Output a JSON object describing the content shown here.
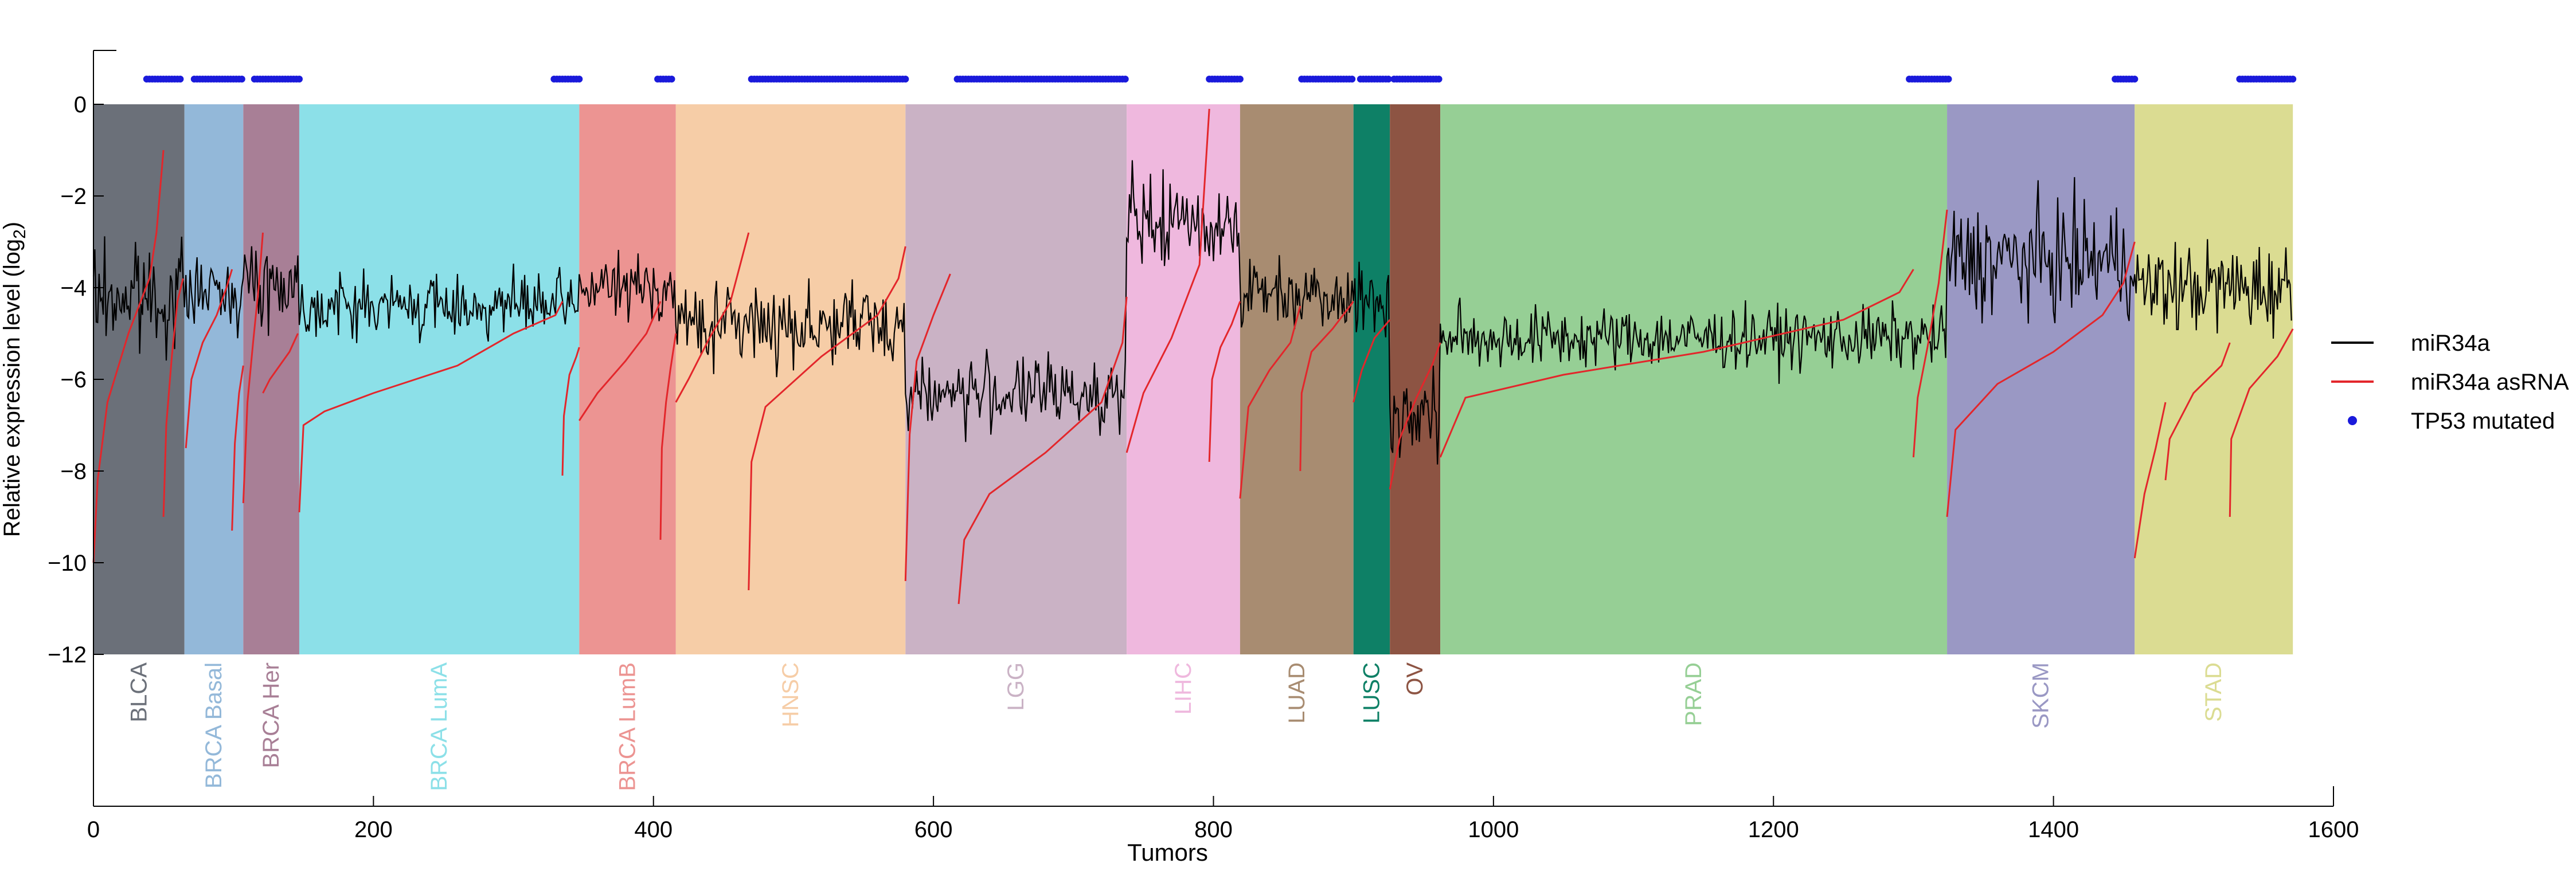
{
  "chart_data": {
    "type": "line",
    "xlabel": "Tumors",
    "ylabel": "Relative expression level (log",
    "ylabel_subscript": "2",
    "ylabel_suffix": ")",
    "xlim": [
      0,
      1600
    ],
    "ylim": [
      -12,
      1
    ],
    "xticks": [
      0,
      200,
      400,
      600,
      800,
      1000,
      1200,
      1400,
      1600
    ],
    "yticks": [
      0,
      -2,
      -4,
      -6,
      -8,
      -10,
      -12
    ],
    "grid": false,
    "legend": {
      "placement": "right",
      "entries": [
        {
          "label": "miR34a",
          "color": "#000000",
          "marker": "line"
        },
        {
          "label": "miR34a asRNA",
          "color": "#e3262b",
          "marker": "line"
        },
        {
          "label": "TP53 mutated",
          "color": "#1a1adb",
          "marker": "dot"
        }
      ]
    },
    "groups": [
      {
        "name": "BLCA",
        "start": 0,
        "end": 65,
        "color": "#6b7079"
      },
      {
        "name": "BRCA Basal",
        "start": 65,
        "end": 107,
        "color": "#93b8d9"
      },
      {
        "name": "BRCA Her",
        "start": 107,
        "end": 147,
        "color": "#a87f96"
      },
      {
        "name": "BRCA LumA",
        "start": 147,
        "end": 347,
        "color": "#8ce0e8"
      },
      {
        "name": "BRCA LumB",
        "start": 347,
        "end": 416,
        "color": "#ec9492"
      },
      {
        "name": "HNSC",
        "start": 416,
        "end": 580,
        "color": "#f6cda7"
      },
      {
        "name": "LGG",
        "start": 580,
        "end": 738,
        "color": "#cab2c5"
      },
      {
        "name": "LIHC",
        "start": 738,
        "end": 819,
        "color": "#efb8de"
      },
      {
        "name": "LUAD",
        "start": 819,
        "end": 900,
        "color": "#a88c71"
      },
      {
        "name": "LUSC",
        "start": 900,
        "end": 926,
        "color": "#0e8066"
      },
      {
        "name": "OV",
        "start": 926,
        "end": 962,
        "color": "#8d5443"
      },
      {
        "name": "PRAD",
        "start": 962,
        "end": 1324,
        "color": "#96cf95"
      },
      {
        "name": "SKCM",
        "start": 1324,
        "end": 1458,
        "color": "#9a98c4"
      },
      {
        "name": "STAD",
        "start": 1458,
        "end": 1571,
        "color": "#dbdc92"
      }
    ],
    "series": [
      {
        "name": "miR34a",
        "color": "#000000",
        "group_levels": [
          {
            "group": "BLCA",
            "mean": -4.2,
            "spread": 1.1
          },
          {
            "group": "BRCA Basal",
            "mean": -4.1,
            "spread": 0.6
          },
          {
            "group": "BRCA Her",
            "mean": -3.9,
            "spread": 0.8
          },
          {
            "group": "BRCA LumA",
            "mean": -4.4,
            "spread": 0.6
          },
          {
            "group": "BRCA LumB",
            "mean": -4.0,
            "spread": 0.6
          },
          {
            "group": "HNSC",
            "mean": -4.8,
            "spread": 0.8
          },
          {
            "group": "LGG",
            "mean": -6.3,
            "spread": 0.7
          },
          {
            "group": "LIHC",
            "mean": -2.6,
            "spread": 0.9
          },
          {
            "group": "LUAD",
            "mean": -4.1,
            "spread": 0.7
          },
          {
            "group": "LUSC",
            "mean": -4.3,
            "spread": 0.7
          },
          {
            "group": "OV",
            "mean": -6.8,
            "spread": 0.9
          },
          {
            "group": "PRAD",
            "mean": -5.1,
            "spread": 0.6
          },
          {
            "group": "SKCM",
            "mean": -3.4,
            "spread": 1.1
          },
          {
            "group": "STAD",
            "mean": -4.0,
            "spread": 0.9
          }
        ]
      },
      {
        "name": "miR34a asRNA",
        "color": "#e3262b",
        "segments": [
          {
            "x": [
              0,
              3,
              10,
              25,
              40,
              45,
              50
            ],
            "y": [
              -10,
              -8.2,
              -6.5,
              -5.0,
              -3.8,
              -2.8,
              -1.0
            ]
          },
          {
            "x": [
              50,
              52,
              56,
              60,
              64
            ],
            "y": [
              -9.0,
              -7.0,
              -5.5,
              -4.3,
              -3.8
            ]
          },
          {
            "x": [
              66,
              70,
              78,
              88,
              95,
              99
            ],
            "y": [
              -7.5,
              -6.0,
              -5.2,
              -4.6,
              -4.0,
              -3.6
            ]
          },
          {
            "x": [
              99,
              101,
              104,
              107
            ],
            "y": [
              -9.3,
              -7.4,
              -6.3,
              -5.7
            ]
          },
          {
            "x": [
              107,
              110,
              114,
              118,
              121
            ],
            "y": [
              -8.7,
              -6.5,
              -5.2,
              -4.0,
              -2.8
            ]
          },
          {
            "x": [
              121,
              126,
              133,
              140,
              146
            ],
            "y": [
              -6.3,
              -6.0,
              -5.7,
              -5.4,
              -5.0
            ]
          },
          {
            "x": [
              147,
              150,
              165,
              200,
              260,
              300,
              330,
              335
            ],
            "y": [
              -8.9,
              -7.0,
              -6.7,
              -6.3,
              -5.7,
              -5.0,
              -4.6,
              -4.3
            ]
          },
          {
            "x": [
              335,
              336,
              340,
              345,
              347
            ],
            "y": [
              -8.1,
              -6.8,
              -5.9,
              -5.5,
              -5.3
            ]
          },
          {
            "x": [
              347,
              360,
              380,
              395,
              405
            ],
            "y": [
              -6.9,
              -6.3,
              -5.6,
              -5.0,
              -4.3
            ]
          },
          {
            "x": [
              405,
              406,
              409,
              412,
              416
            ],
            "y": [
              -9.5,
              -7.5,
              -6.5,
              -5.8,
              -5.0
            ]
          },
          {
            "x": [
              416,
              425,
              440,
              455,
              468
            ],
            "y": [
              -6.5,
              -6.0,
              -5.1,
              -4.3,
              -2.8
            ]
          },
          {
            "x": [
              468,
              470,
              480,
              520,
              560,
              575,
              580
            ],
            "y": [
              -10.6,
              -7.8,
              -6.6,
              -5.5,
              -4.6,
              -3.8,
              -3.1
            ]
          },
          {
            "x": [
              580,
              583,
              588,
              600,
              612
            ],
            "y": [
              -10.4,
              -7.2,
              -5.6,
              -4.6,
              -3.7
            ]
          },
          {
            "x": [
              618,
              622,
              640,
              680,
              720,
              735,
              738
            ],
            "y": [
              -10.9,
              -9.5,
              -8.5,
              -7.6,
              -6.5,
              -5.2,
              -4.2
            ]
          },
          {
            "x": [
              738,
              750,
              770,
              790,
              797
            ],
            "y": [
              -7.6,
              -6.3,
              -5.1,
              -3.5,
              -0.1
            ]
          },
          {
            "x": [
              797,
              799,
              805,
              813,
              819
            ],
            "y": [
              -7.8,
              -6.0,
              -5.3,
              -4.8,
              -4.3
            ]
          },
          {
            "x": [
              819,
              825,
              840,
              855,
              862
            ],
            "y": [
              -8.6,
              -6.6,
              -5.8,
              -5.2,
              -4.4
            ]
          },
          {
            "x": [
              862,
              863,
              870,
              885,
              900
            ],
            "y": [
              -8.0,
              -6.3,
              -5.4,
              -4.9,
              -4.3
            ]
          },
          {
            "x": [
              900,
              906,
              915,
              926
            ],
            "y": [
              -6.5,
              -5.8,
              -5.1,
              -4.7
            ]
          },
          {
            "x": [
              926,
              933,
              945,
              956,
              962
            ],
            "y": [
              -8.4,
              -7.3,
              -6.4,
              -5.7,
              -5.2
            ]
          },
          {
            "x": [
              962,
              980,
              1050,
              1150,
              1250,
              1290,
              1300
            ],
            "y": [
              -7.7,
              -6.4,
              -5.9,
              -5.4,
              -4.7,
              -4.1,
              -3.6
            ]
          },
          {
            "x": [
              1300,
              1303,
              1310,
              1318,
              1324
            ],
            "y": [
              -7.7,
              -6.4,
              -5.3,
              -3.9,
              -2.3
            ]
          },
          {
            "x": [
              1324,
              1330,
              1360,
              1400,
              1435,
              1450,
              1458
            ],
            "y": [
              -9.0,
              -7.1,
              -6.1,
              -5.4,
              -4.6,
              -3.9,
              -3.0
            ]
          },
          {
            "x": [
              1458,
              1465,
              1473,
              1480
            ],
            "y": [
              -9.9,
              -8.5,
              -7.5,
              -6.5
            ]
          },
          {
            "x": [
              1480,
              1483,
              1500,
              1520,
              1526
            ],
            "y": [
              -8.2,
              -7.3,
              -6.3,
              -5.7,
              -5.2
            ]
          },
          {
            "x": [
              1526,
              1527,
              1540,
              1560,
              1571
            ],
            "y": [
              -9.0,
              -7.3,
              -6.2,
              -5.5,
              -4.9
            ]
          }
        ]
      },
      {
        "name": "TP53 mutated",
        "color": "#1a1adb",
        "y_level": 0.55,
        "ranges": [
          [
            38,
            63
          ],
          [
            72,
            107
          ],
          [
            115,
            148
          ],
          [
            329,
            347
          ],
          [
            403,
            414
          ],
          [
            470,
            580
          ],
          [
            617,
            738
          ],
          [
            797,
            820
          ],
          [
            863,
            900
          ],
          [
            905,
            925
          ],
          [
            929,
            962
          ],
          [
            1297,
            1326
          ],
          [
            1444,
            1458
          ],
          [
            1533,
            1571
          ]
        ]
      }
    ]
  }
}
